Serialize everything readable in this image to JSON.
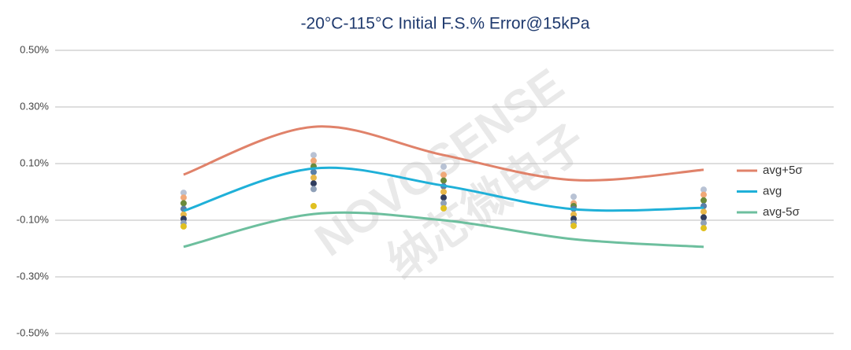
{
  "chart_data": {
    "type": "line",
    "title": "-20°C-115°C Initial F.S.% Error@15kPa",
    "watermark": [
      "NOVOSENSE",
      "纳芯微电子"
    ],
    "categories": [
      null,
      null,
      null,
      null,
      null
    ],
    "ylim": [
      -0.5,
      0.5
    ],
    "yticks": [
      {
        "value": 0.5,
        "label": "0.50%"
      },
      {
        "value": 0.3,
        "label": "0.30%"
      },
      {
        "value": 0.1,
        "label": "0.10%"
      },
      {
        "value": -0.1,
        "label": "-0.10%"
      },
      {
        "value": -0.3,
        "label": "-0.30%"
      },
      {
        "value": -0.5,
        "label": "-0.50%"
      }
    ],
    "grid": true,
    "legend": "right",
    "series": [
      {
        "name": "avg+5σ",
        "color": "#e0826a",
        "values": [
          0.061,
          0.23,
          0.13,
          0.042,
          0.078
        ]
      },
      {
        "name": "avg",
        "color": "#1fb0d8",
        "values": [
          -0.067,
          0.083,
          0.022,
          -0.061,
          -0.056
        ]
      },
      {
        "name": "avg-5σ",
        "color": "#6dbf9e",
        "values": [
          -0.194,
          -0.078,
          -0.1,
          -0.167,
          -0.194
        ]
      }
    ],
    "samples": [
      {
        "color": "#b8c2d4",
        "values": [
          -0.003,
          0.13,
          0.089,
          -0.017,
          0.008
        ]
      },
      {
        "color": "#f0a878",
        "values": [
          -0.02,
          0.11,
          0.06,
          -0.04,
          -0.01
        ]
      },
      {
        "color": "#6a8a3a",
        "values": [
          -0.04,
          0.09,
          0.04,
          -0.05,
          -0.03
        ]
      },
      {
        "color": "#5b7fa8",
        "values": [
          -0.06,
          0.07,
          0.02,
          -0.06,
          -0.05
        ]
      },
      {
        "color": "#e8b84a",
        "values": [
          -0.08,
          0.05,
          0.0,
          -0.08,
          -0.07
        ]
      },
      {
        "color": "#2f3c5e",
        "values": [
          -0.095,
          0.03,
          -0.02,
          -0.095,
          -0.09
        ]
      },
      {
        "color": "#8fa0b8",
        "values": [
          -0.11,
          0.01,
          -0.04,
          -0.11,
          -0.11
        ]
      },
      {
        "color": "#e0c020",
        "values": [
          -0.122,
          -0.05,
          -0.058,
          -0.12,
          -0.128
        ]
      }
    ]
  }
}
